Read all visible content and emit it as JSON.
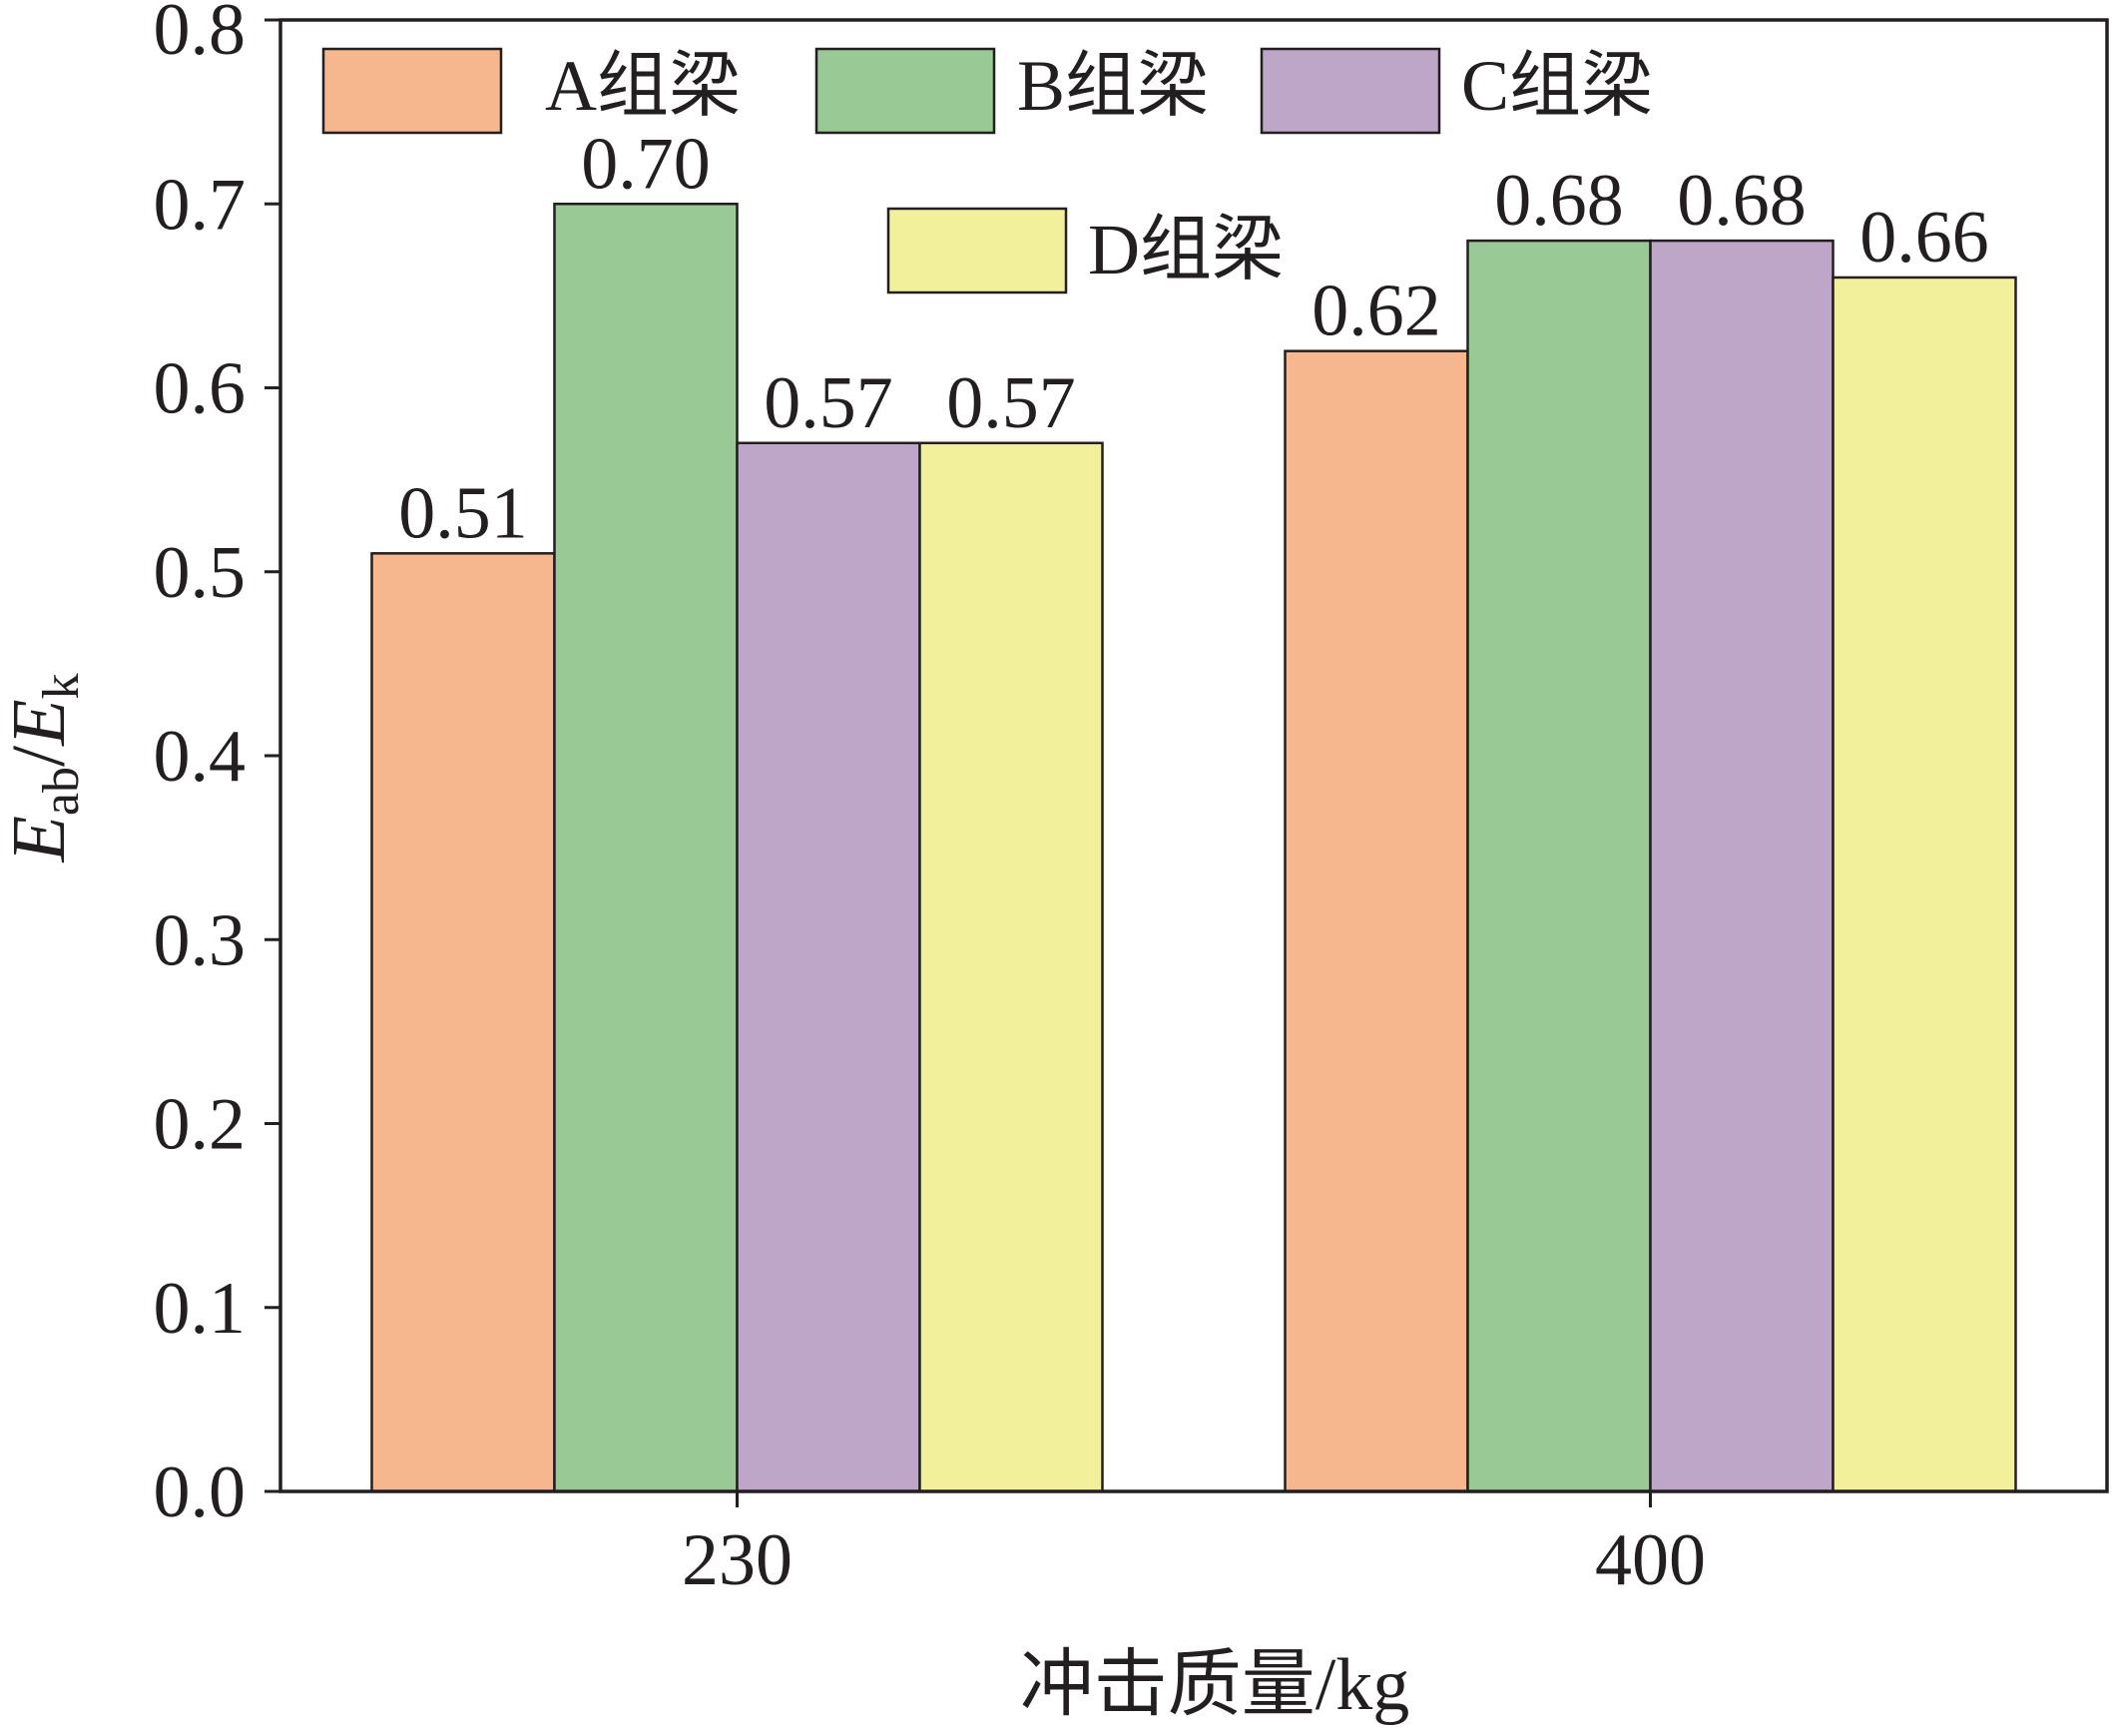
{
  "chart_data": {
    "type": "bar",
    "categories": [
      "230",
      "400"
    ],
    "series": [
      {
        "name": "A组梁",
        "values": [
          0.51,
          0.62
        ],
        "data_labels": [
          "0.51",
          "0.62"
        ],
        "color": "#F6B78E"
      },
      {
        "name": "B组梁",
        "values": [
          0.7,
          0.68
        ],
        "data_labels": [
          "0.70",
          "0.68"
        ],
        "color": "#99C994"
      },
      {
        "name": "C组梁",
        "values": [
          0.57,
          0.68
        ],
        "data_labels": [
          "0.57",
          "0.68"
        ],
        "color": "#BEA6C8"
      },
      {
        "name": "D组梁",
        "values": [
          0.57,
          0.66
        ],
        "data_labels": [
          "0.57",
          "0.66"
        ],
        "color": "#F3F09B"
      }
    ],
    "xlabel": "冲击质量/kg",
    "ylabel": {
      "numerator": {
        "base": "E",
        "sub": "ab"
      },
      "separator": "/",
      "denominator": {
        "base": "E",
        "sub": "k"
      }
    },
    "ylim": [
      0,
      0.8
    ],
    "yticks": [
      "0.0",
      "0.1",
      "0.2",
      "0.3",
      "0.4",
      "0.5",
      "0.6",
      "0.7",
      "0.8"
    ],
    "grid": false,
    "legend": "top"
  }
}
